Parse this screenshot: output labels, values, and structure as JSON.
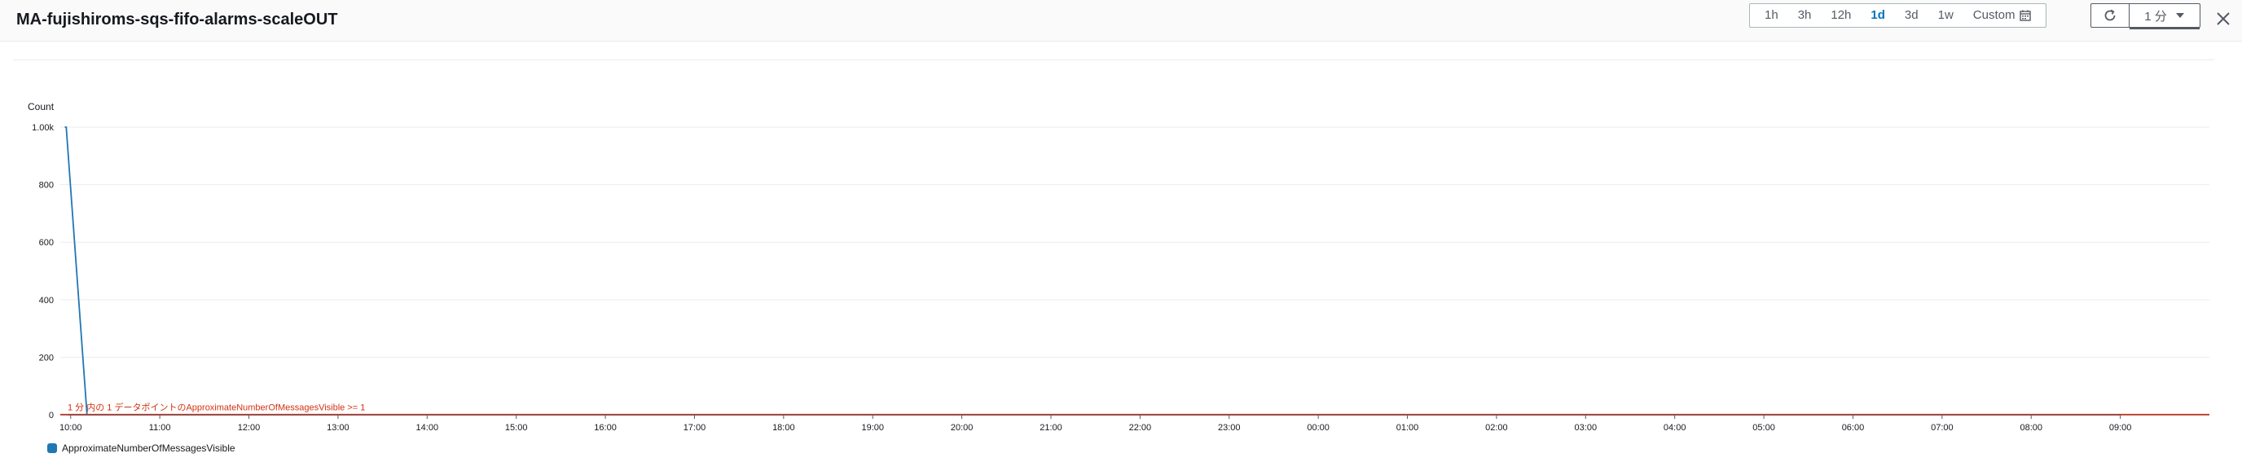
{
  "window": {
    "title": "MA-fujishiroms-sqs-fifo-alarms-scaleOUT"
  },
  "toolbar": {
    "time_ranges": [
      "1h",
      "3h",
      "12h",
      "1d",
      "3d",
      "1w"
    ],
    "active_range": "1d",
    "custom_label": "Custom",
    "refresh_interval": "1 分"
  },
  "icons": {
    "calendar": "calendar-icon",
    "refresh": "refresh-icon",
    "dropdown": "caret-down-icon",
    "close": "close-icon"
  },
  "colors": {
    "series": "#1f77b4",
    "threshold": "#d13212",
    "active_range": "#0073bb"
  },
  "chart_data": {
    "type": "line",
    "ylabel": "Count",
    "ylim": [
      0,
      1000
    ],
    "y_ticks": [
      "0",
      "200",
      "400",
      "600",
      "800",
      "1.00k"
    ],
    "y_tick_values": [
      0,
      200,
      400,
      600,
      800,
      1000
    ],
    "x_ticks": [
      "10:00",
      "11:00",
      "12:00",
      "13:00",
      "14:00",
      "15:00",
      "16:00",
      "17:00",
      "18:00",
      "19:00",
      "20:00",
      "21:00",
      "22:00",
      "23:00",
      "00:00",
      "01:00",
      "02:00",
      "03:00",
      "04:00",
      "05:00",
      "06:00",
      "07:00",
      "08:00",
      "09:00"
    ],
    "x_range": [
      "09:53",
      "10:00 (+1d)"
    ],
    "series": [
      {
        "name": "ApproximateNumberOfMessagesVisible",
        "x": [
          "09:56",
          "09:57",
          "10:11",
          "10:12",
          "10:30",
          "12:00",
          "15:00",
          "18:00",
          "21:00",
          "00:00",
          "03:00",
          "06:00",
          "09:00",
          "09:58"
        ],
        "y": [
          1000,
          1000,
          0,
          0,
          0,
          0,
          0,
          0,
          0,
          0,
          0,
          0,
          0,
          0
        ]
      }
    ],
    "threshold": {
      "label": "1 分 内の 1 データポイントのApproximateNumberOfMessagesVisible >= 1",
      "value": 1
    },
    "grid": true,
    "legend": "bottom-left"
  }
}
